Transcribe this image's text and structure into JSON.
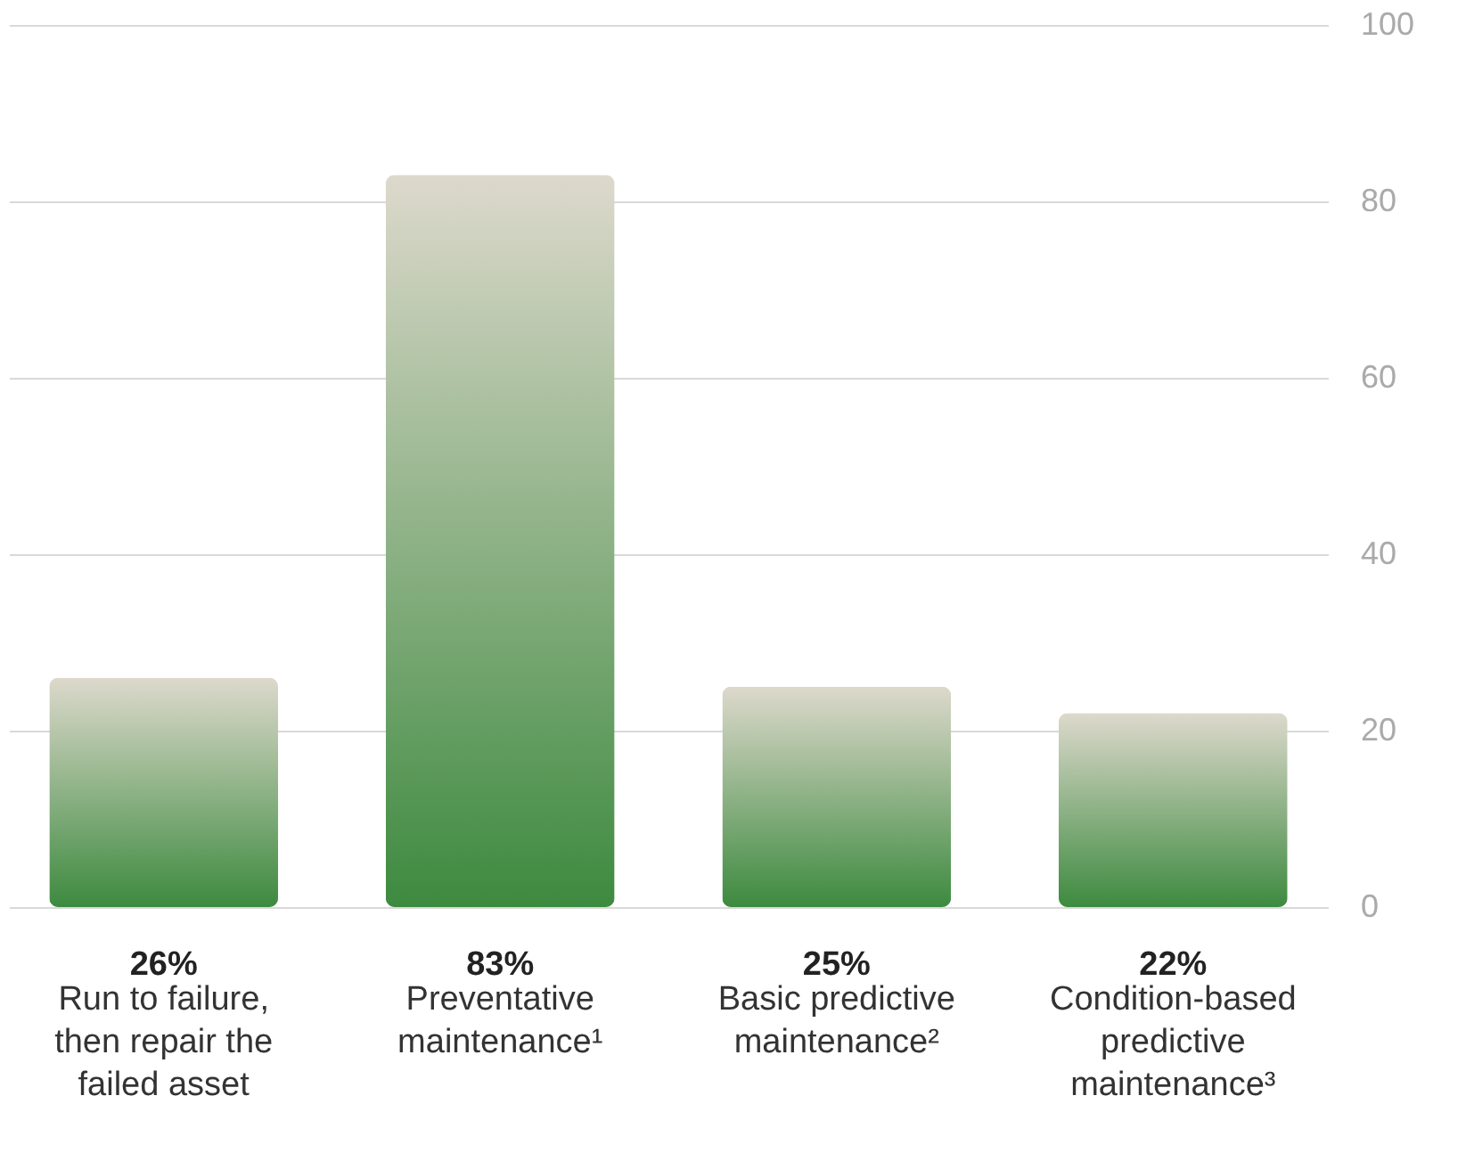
{
  "chart_data": {
    "type": "bar",
    "categories": [
      "Run to failure, then repair the failed asset",
      "Preventative maintenance¹",
      "Basic predictive maintenance²",
      "Condition-based predictive maintenance³"
    ],
    "values": [
      26,
      83,
      25,
      22
    ],
    "value_labels": [
      "26%",
      "83%",
      "25%",
      "22%"
    ],
    "color": "#3d8a3f",
    "ylim": [
      0,
      100
    ],
    "yticks": [
      0,
      20,
      40,
      60,
      80,
      100
    ],
    "grid": "y"
  }
}
